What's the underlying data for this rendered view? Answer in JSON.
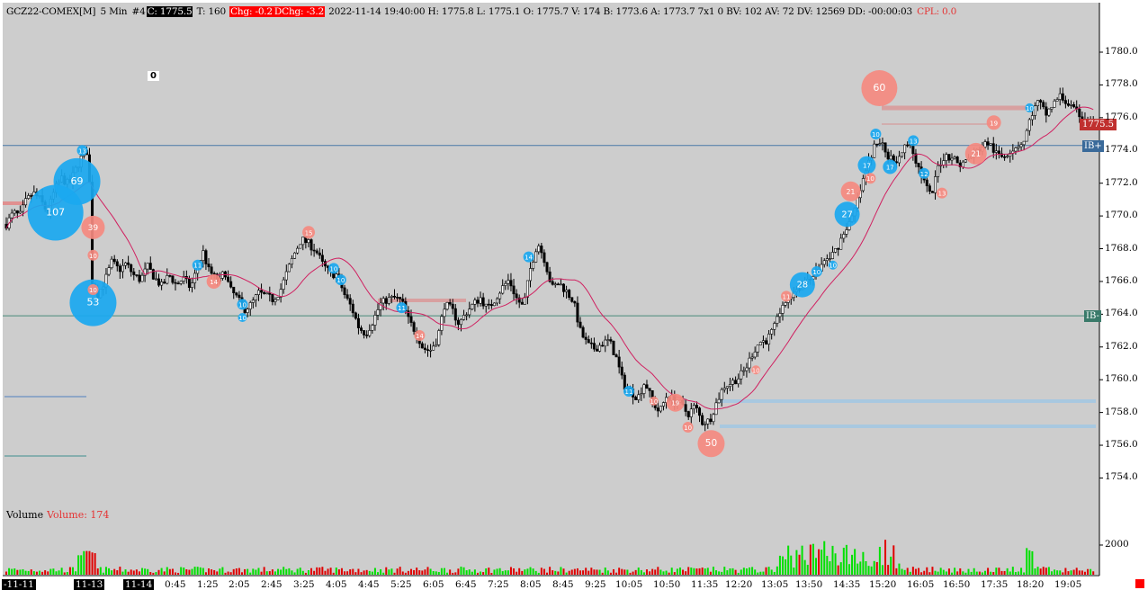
{
  "header": {
    "symbol": "GCZ22-COMEX[M]",
    "interval": "5 Min",
    "tag": "#4",
    "close": "C: 1775.5",
    "ticks": "T: 160",
    "chg": "Chg: -0.2",
    "dchg": "DChg: -3.2",
    "rest": "2022-11-14 19:40:00 H: 1775.8 L: 1775.1 O: 1775.7 V: 174 B: 1773.6 A: 1773.7 7x1 0 BV: 102 AV: 72 DV: 12569 DD: -00:00:03",
    "cpl": "CPL: 0.0"
  },
  "zero_box": "0",
  "volume_label": "Volume",
  "volume_value": "Volume: 174",
  "price_tag": "1775.5",
  "ib_high_label": "IB+",
  "ib_low_label": "IB-",
  "colors": {
    "background": "#cdcdcd",
    "up_volume": "#00e000",
    "down_volume": "#e00000",
    "ma_line": "#d02060",
    "bubble_buy": "#1aa8f0",
    "bubble_sell": "#f58a80",
    "ib_line": "#4a78a8",
    "price_tag": "#c0302f"
  },
  "chart_data": {
    "type": "candlestick",
    "title": "GCZ22-COMEX[M] 5 Min",
    "y_ticks": [
      "1780.0",
      "1778.0",
      "1776.0",
      "1774.0",
      "1772.0",
      "1770.0",
      "1768.0",
      "1766.0",
      "1764.0",
      "1762.0",
      "1760.0",
      "1758.0",
      "1756.0",
      "1754.0"
    ],
    "volume_ticks": [
      "2000"
    ],
    "x_ticks": [
      "-11-11",
      "11-13",
      "11-14",
      "0:45",
      "1:25",
      "2:05",
      "2:45",
      "3:25",
      "4:05",
      "4:45",
      "5:25",
      "6:05",
      "6:45",
      "7:25",
      "8:05",
      "8:45",
      "9:25",
      "10:05",
      "10:50",
      "11:35",
      "12:20",
      "13:05",
      "13:50",
      "14:35",
      "15:20",
      "16:05",
      "16:50",
      "17:35",
      "18:20",
      "19:05"
    ],
    "ylim": [
      1752.5,
      1782.0
    ],
    "last_price": 1775.5,
    "ib_high": 1774.3,
    "ib_low": 1763.9,
    "close_path": [
      [
        0,
        1769.5
      ],
      [
        8,
        1770.2
      ],
      [
        15,
        1770.0
      ],
      [
        22,
        1770.9
      ],
      [
        30,
        1771.4
      ],
      [
        38,
        1771.0
      ],
      [
        46,
        1770.2
      ],
      [
        54,
        1771.6
      ],
      [
        62,
        1772.3
      ],
      [
        70,
        1771.9
      ],
      [
        78,
        1772.9
      ],
      [
        86,
        1773.8
      ],
      [
        92,
        1774.0
      ],
      [
        96,
        1766.0
      ],
      [
        102,
        1765.2
      ],
      [
        110,
        1766.0
      ],
      [
        118,
        1767.2
      ],
      [
        126,
        1766.7
      ],
      [
        134,
        1767.1
      ],
      [
        142,
        1766.4
      ],
      [
        150,
        1766.1
      ],
      [
        158,
        1766.9
      ],
      [
        166,
        1766.2
      ],
      [
        174,
        1765.7
      ],
      [
        182,
        1766.4
      ],
      [
        190,
        1765.8
      ],
      [
        198,
        1766.2
      ],
      [
        206,
        1765.6
      ],
      [
        214,
        1766.9
      ],
      [
        220,
        1767.8
      ],
      [
        226,
        1766.7
      ],
      [
        232,
        1766.3
      ],
      [
        238,
        1765.9
      ],
      [
        244,
        1766.7
      ],
      [
        250,
        1765.5
      ],
      [
        258,
        1765.0
      ],
      [
        266,
        1764.3
      ],
      [
        274,
        1764.6
      ],
      [
        282,
        1765.3
      ],
      [
        290,
        1765.1
      ],
      [
        298,
        1764.9
      ],
      [
        306,
        1765.4
      ],
      [
        314,
        1766.6
      ],
      [
        322,
        1767.7
      ],
      [
        330,
        1768.6
      ],
      [
        338,
        1768.3
      ],
      [
        346,
        1767.9
      ],
      [
        354,
        1767.0
      ],
      [
        362,
        1766.5
      ],
      [
        370,
        1766.4
      ],
      [
        378,
        1765.2
      ],
      [
        386,
        1764.4
      ],
      [
        394,
        1763.2
      ],
      [
        402,
        1762.8
      ],
      [
        410,
        1763.6
      ],
      [
        418,
        1764.6
      ],
      [
        426,
        1764.9
      ],
      [
        434,
        1765.0
      ],
      [
        442,
        1764.8
      ],
      [
        450,
        1763.6
      ],
      [
        458,
        1762.9
      ],
      [
        466,
        1761.9
      ],
      [
        474,
        1761.8
      ],
      [
        482,
        1762.5
      ],
      [
        490,
        1764.6
      ],
      [
        498,
        1764.3
      ],
      [
        506,
        1763.4
      ],
      [
        514,
        1764.1
      ],
      [
        522,
        1764.6
      ],
      [
        530,
        1765.0
      ],
      [
        538,
        1764.3
      ],
      [
        546,
        1764.9
      ],
      [
        554,
        1765.6
      ],
      [
        562,
        1766.1
      ],
      [
        570,
        1765.0
      ],
      [
        578,
        1764.4
      ],
      [
        586,
        1766.8
      ],
      [
        594,
        1768.4
      ],
      [
        602,
        1767.3
      ],
      [
        610,
        1765.6
      ],
      [
        618,
        1765.9
      ],
      [
        626,
        1765.4
      ],
      [
        634,
        1764.8
      ],
      [
        642,
        1762.9
      ],
      [
        650,
        1762.1
      ],
      [
        658,
        1761.9
      ],
      [
        666,
        1762.2
      ],
      [
        674,
        1762.4
      ],
      [
        682,
        1761.3
      ],
      [
        690,
        1759.7
      ],
      [
        698,
        1759.3
      ],
      [
        706,
        1758.9
      ],
      [
        714,
        1759.9
      ],
      [
        722,
        1758.7
      ],
      [
        730,
        1758.0
      ],
      [
        738,
        1759.0
      ],
      [
        746,
        1758.8
      ],
      [
        754,
        1758.5
      ],
      [
        762,
        1757.9
      ],
      [
        770,
        1758.4
      ],
      [
        778,
        1757.4
      ],
      [
        786,
        1757.5
      ],
      [
        794,
        1758.6
      ],
      [
        802,
        1759.6
      ],
      [
        810,
        1759.8
      ],
      [
        818,
        1760.1
      ],
      [
        826,
        1760.6
      ],
      [
        834,
        1761.6
      ],
      [
        842,
        1762.3
      ],
      [
        850,
        1762.4
      ],
      [
        858,
        1763.1
      ],
      [
        866,
        1764.2
      ],
      [
        874,
        1765.0
      ],
      [
        882,
        1765.5
      ],
      [
        890,
        1765.8
      ],
      [
        898,
        1766.3
      ],
      [
        906,
        1766.6
      ],
      [
        914,
        1767.2
      ],
      [
        922,
        1767.5
      ],
      [
        930,
        1768.2
      ],
      [
        938,
        1769.2
      ],
      [
        946,
        1769.9
      ],
      [
        954,
        1771.4
      ],
      [
        962,
        1772.9
      ],
      [
        970,
        1774.2
      ],
      [
        978,
        1774.5
      ],
      [
        986,
        1773.6
      ],
      [
        994,
        1773.4
      ],
      [
        1002,
        1774.0
      ],
      [
        1010,
        1774.6
      ],
      [
        1018,
        1773.2
      ],
      [
        1026,
        1772.1
      ],
      [
        1034,
        1771.1
      ],
      [
        1042,
        1773.1
      ],
      [
        1050,
        1773.7
      ],
      [
        1058,
        1773.6
      ],
      [
        1066,
        1773.1
      ],
      [
        1074,
        1773.4
      ],
      [
        1082,
        1773.8
      ],
      [
        1090,
        1774.2
      ],
      [
        1098,
        1774.5
      ],
      [
        1106,
        1773.8
      ],
      [
        1114,
        1773.6
      ],
      [
        1122,
        1774.0
      ],
      [
        1130,
        1774.3
      ],
      [
        1138,
        1774.6
      ],
      [
        1146,
        1776.2
      ],
      [
        1154,
        1777.0
      ],
      [
        1162,
        1776.2
      ],
      [
        1170,
        1776.8
      ],
      [
        1178,
        1777.3
      ],
      [
        1186,
        1776.9
      ],
      [
        1194,
        1776.4
      ],
      [
        1202,
        1776.1
      ],
      [
        1210,
        1775.7
      ],
      [
        1216,
        1775.5
      ]
    ],
    "bubbles": [
      {
        "x": 55,
        "p": 1770.2,
        "r": 31,
        "side": "buy",
        "label": "107"
      },
      {
        "x": 79,
        "p": 1772.1,
        "r": 26,
        "side": "buy",
        "label": "69"
      },
      {
        "x": 97,
        "p": 1764.7,
        "r": 26,
        "side": "buy",
        "label": "53"
      },
      {
        "x": 97,
        "p": 1769.3,
        "r": 13,
        "side": "sell",
        "label": "39"
      },
      {
        "x": 97,
        "p": 1767.6,
        "r": 6,
        "side": "sell",
        "label": "10"
      },
      {
        "x": 97,
        "p": 1765.5,
        "r": 6,
        "side": "sell",
        "label": "10"
      },
      {
        "x": 85,
        "p": 1774.0,
        "r": 6,
        "side": "buy",
        "label": "13"
      },
      {
        "x": 214,
        "p": 1767.0,
        "r": 6,
        "side": "buy",
        "label": "11"
      },
      {
        "x": 232,
        "p": 1766.0,
        "r": 8,
        "side": "sell",
        "label": "14"
      },
      {
        "x": 264,
        "p": 1764.6,
        "r": 6,
        "side": "buy",
        "label": "10"
      },
      {
        "x": 264,
        "p": 1763.8,
        "r": 5,
        "side": "buy",
        "label": "10"
      },
      {
        "x": 338,
        "p": 1769.0,
        "r": 7,
        "side": "sell",
        "label": "15"
      },
      {
        "x": 366,
        "p": 1766.8,
        "r": 6,
        "side": "buy",
        "label": "10"
      },
      {
        "x": 374,
        "p": 1766.1,
        "r": 6,
        "side": "buy",
        "label": "10"
      },
      {
        "x": 442,
        "p": 1764.4,
        "r": 6,
        "side": "buy",
        "label": "11"
      },
      {
        "x": 462,
        "p": 1762.7,
        "r": 6,
        "side": "sell",
        "label": "14"
      },
      {
        "x": 584,
        "p": 1767.5,
        "r": 6,
        "side": "buy",
        "label": "14"
      },
      {
        "x": 696,
        "p": 1759.3,
        "r": 6,
        "side": "buy",
        "label": "11"
      },
      {
        "x": 724,
        "p": 1758.7,
        "r": 5,
        "side": "sell",
        "label": "10"
      },
      {
        "x": 748,
        "p": 1758.6,
        "r": 10,
        "side": "sell",
        "label": "19"
      },
      {
        "x": 762,
        "p": 1757.1,
        "r": 6,
        "side": "sell",
        "label": "10"
      },
      {
        "x": 788,
        "p": 1756.1,
        "r": 15,
        "side": "sell",
        "label": "50"
      },
      {
        "x": 838,
        "p": 1760.6,
        "r": 5,
        "side": "sell",
        "label": "10"
      },
      {
        "x": 872,
        "p": 1765.1,
        "r": 6,
        "side": "sell",
        "label": "11"
      },
      {
        "x": 890,
        "p": 1765.8,
        "r": 14,
        "side": "buy",
        "label": "28"
      },
      {
        "x": 906,
        "p": 1766.6,
        "r": 6,
        "side": "buy",
        "label": "10"
      },
      {
        "x": 924,
        "p": 1767.0,
        "r": 5,
        "side": "buy",
        "label": "10"
      },
      {
        "x": 940,
        "p": 1770.1,
        "r": 14,
        "side": "buy",
        "label": "27"
      },
      {
        "x": 944,
        "p": 1771.5,
        "r": 11,
        "side": "sell",
        "label": "21"
      },
      {
        "x": 962,
        "p": 1773.1,
        "r": 10,
        "side": "buy",
        "label": "17"
      },
      {
        "x": 966,
        "p": 1772.3,
        "r": 6,
        "side": "sell",
        "label": "10"
      },
      {
        "x": 972,
        "p": 1775.0,
        "r": 6,
        "side": "buy",
        "label": "10"
      },
      {
        "x": 976,
        "p": 1777.8,
        "r": 20,
        "side": "sell",
        "label": "60"
      },
      {
        "x": 988,
        "p": 1773.0,
        "r": 8,
        "side": "buy",
        "label": "17"
      },
      {
        "x": 1014,
        "p": 1774.6,
        "r": 6,
        "side": "buy",
        "label": "13"
      },
      {
        "x": 1026,
        "p": 1772.6,
        "r": 6,
        "side": "buy",
        "label": "12"
      },
      {
        "x": 1046,
        "p": 1771.4,
        "r": 6,
        "side": "sell",
        "label": "13"
      },
      {
        "x": 1084,
        "p": 1773.8,
        "r": 12,
        "side": "sell",
        "label": "21"
      },
      {
        "x": 1104,
        "p": 1775.7,
        "r": 8,
        "side": "sell",
        "label": "19"
      },
      {
        "x": 1144,
        "p": 1776.6,
        "r": 5,
        "side": "buy",
        "label": "10"
      }
    ]
  }
}
